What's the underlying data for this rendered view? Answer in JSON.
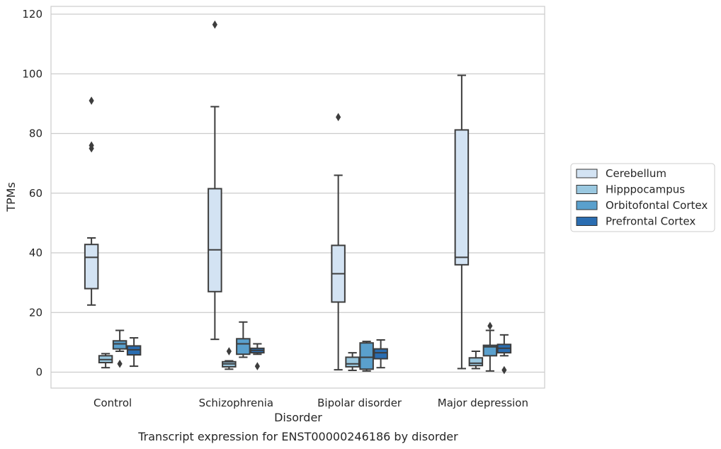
{
  "caption": "Transcript expression for ENST00000246186 by disorder",
  "chart_data": {
    "type": "boxplot",
    "title": "",
    "xlabel": "Disorder",
    "ylabel": "TPMs",
    "ylim": [
      -5,
      122
    ],
    "yticks": [
      0,
      20,
      40,
      60,
      80,
      100,
      120
    ],
    "grid": true,
    "legend_position": "right",
    "categories": [
      "Control",
      "Schizophrenia",
      "Bipolar disorder",
      "Major depression"
    ],
    "series": [
      {
        "name": "Cerebellum",
        "color": "#d3e3f3",
        "boxes": [
          {
            "whislo": 22.5,
            "q1": 28.0,
            "median": 38.5,
            "q3": 42.8,
            "whishi": 45.0,
            "fliers": [
              75.0,
              76.0,
              91.0
            ]
          },
          {
            "whislo": 11.0,
            "q1": 27.0,
            "median": 41.0,
            "q3": 61.5,
            "whishi": 89.0,
            "fliers": [
              116.5
            ]
          },
          {
            "whislo": 0.8,
            "q1": 23.5,
            "median": 33.0,
            "q3": 42.5,
            "whishi": 66.0,
            "fliers": [
              85.5
            ]
          },
          {
            "whislo": 1.2,
            "q1": 36.0,
            "median": 38.5,
            "q3": 81.2,
            "whishi": 99.5,
            "fliers": []
          }
        ]
      },
      {
        "name": "Hipppocampus",
        "color": "#9ac8e0",
        "boxes": [
          {
            "whislo": 1.5,
            "q1": 3.2,
            "median": 4.2,
            "q3": 5.5,
            "whishi": 6.2,
            "fliers": []
          },
          {
            "whislo": 1.0,
            "q1": 1.8,
            "median": 2.8,
            "q3": 3.5,
            "whishi": 3.8,
            "fliers": [
              7.0
            ]
          },
          {
            "whislo": 0.6,
            "q1": 1.8,
            "median": 2.8,
            "q3": 5.0,
            "whishi": 6.5,
            "fliers": []
          },
          {
            "whislo": 1.2,
            "q1": 2.2,
            "median": 3.0,
            "q3": 4.8,
            "whishi": 7.0,
            "fliers": []
          }
        ]
      },
      {
        "name": "Orbitofontal Cortex",
        "color": "#5aa0cd",
        "boxes": [
          {
            "whislo": 7.0,
            "q1": 7.8,
            "median": 9.5,
            "q3": 10.5,
            "whishi": 14.0,
            "fliers": [
              2.8
            ]
          },
          {
            "whislo": 5.0,
            "q1": 6.0,
            "median": 9.5,
            "q3": 11.2,
            "whishi": 16.8,
            "fliers": []
          },
          {
            "whislo": 0.4,
            "q1": 1.0,
            "median": 5.0,
            "q3": 9.8,
            "whishi": 10.3,
            "fliers": []
          },
          {
            "whislo": 0.4,
            "q1": 5.5,
            "median": 8.5,
            "q3": 9.0,
            "whishi": 14.0,
            "fliers": [
              15.5
            ]
          }
        ]
      },
      {
        "name": "Prefrontal Cortex",
        "color": "#2a6db1",
        "boxes": [
          {
            "whislo": 2.0,
            "q1": 5.8,
            "median": 7.5,
            "q3": 8.8,
            "whishi": 11.5,
            "fliers": []
          },
          {
            "whislo": 6.0,
            "q1": 6.5,
            "median": 7.3,
            "q3": 8.0,
            "whishi": 9.5,
            "fliers": [
              2.0
            ]
          },
          {
            "whislo": 1.5,
            "q1": 4.5,
            "median": 6.5,
            "q3": 7.8,
            "whishi": 10.8,
            "fliers": []
          },
          {
            "whislo": 5.5,
            "q1": 6.5,
            "median": 8.0,
            "q3": 9.3,
            "whishi": 12.5,
            "fliers": [
              0.7
            ]
          }
        ]
      }
    ]
  }
}
